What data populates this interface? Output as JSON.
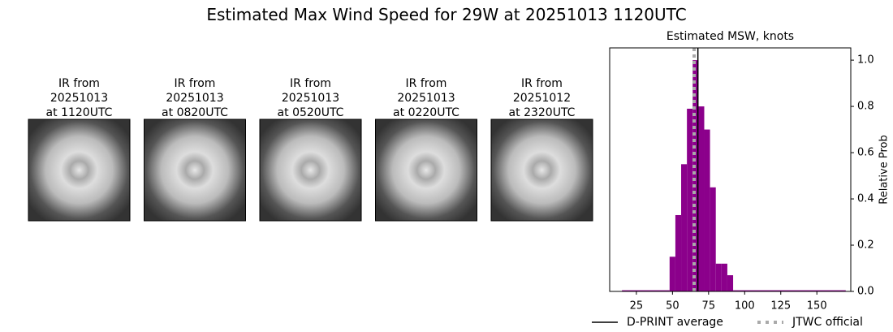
{
  "title": "Estimated Max Wind Speed for 29W at 20251013 1120UTC",
  "images": [
    {
      "title": [
        "IR from",
        "20251013",
        "at 1120UTC"
      ]
    },
    {
      "title": [
        "IR from",
        "20251013",
        "at 0820UTC"
      ]
    },
    {
      "title": [
        "IR from",
        "20251013",
        "at 0520UTC"
      ]
    },
    {
      "title": [
        "IR from",
        "20251013",
        "at 0220UTC"
      ]
    },
    {
      "title": [
        "IR from",
        "20251012",
        "at 2320UTC"
      ]
    }
  ],
  "chart_data": {
    "type": "histogram",
    "title": "Estimated MSW, knots",
    "y_label": "Relative Prob",
    "bins": [
      15,
      48,
      52,
      56,
      60,
      64,
      68,
      72,
      76,
      80,
      84,
      88,
      92,
      170
    ],
    "values": [
      0.005,
      0.15,
      0.33,
      0.55,
      0.79,
      1.0,
      0.8,
      0.7,
      0.45,
      0.12,
      0.12,
      0.07,
      0.005
    ],
    "color": "#8b008b",
    "xlim": [
      6.5,
      173.5
    ],
    "ylim": [
      0,
      1.053
    ],
    "xticks": [
      25,
      50,
      75,
      100,
      125,
      150
    ],
    "yticks": [
      {
        "value": 0,
        "label": "0.0"
      },
      0.2,
      0.4,
      0.6,
      0.8,
      {
        "value": 1,
        "label": "1.0"
      }
    ],
    "lines": [
      {
        "name": "D-PRINT average",
        "x": 67.6,
        "color": "#000000",
        "style": "solid"
      },
      {
        "name": "JTWC official",
        "x": 65,
        "color": "#aaaaaa",
        "style": "dotted"
      }
    ]
  }
}
